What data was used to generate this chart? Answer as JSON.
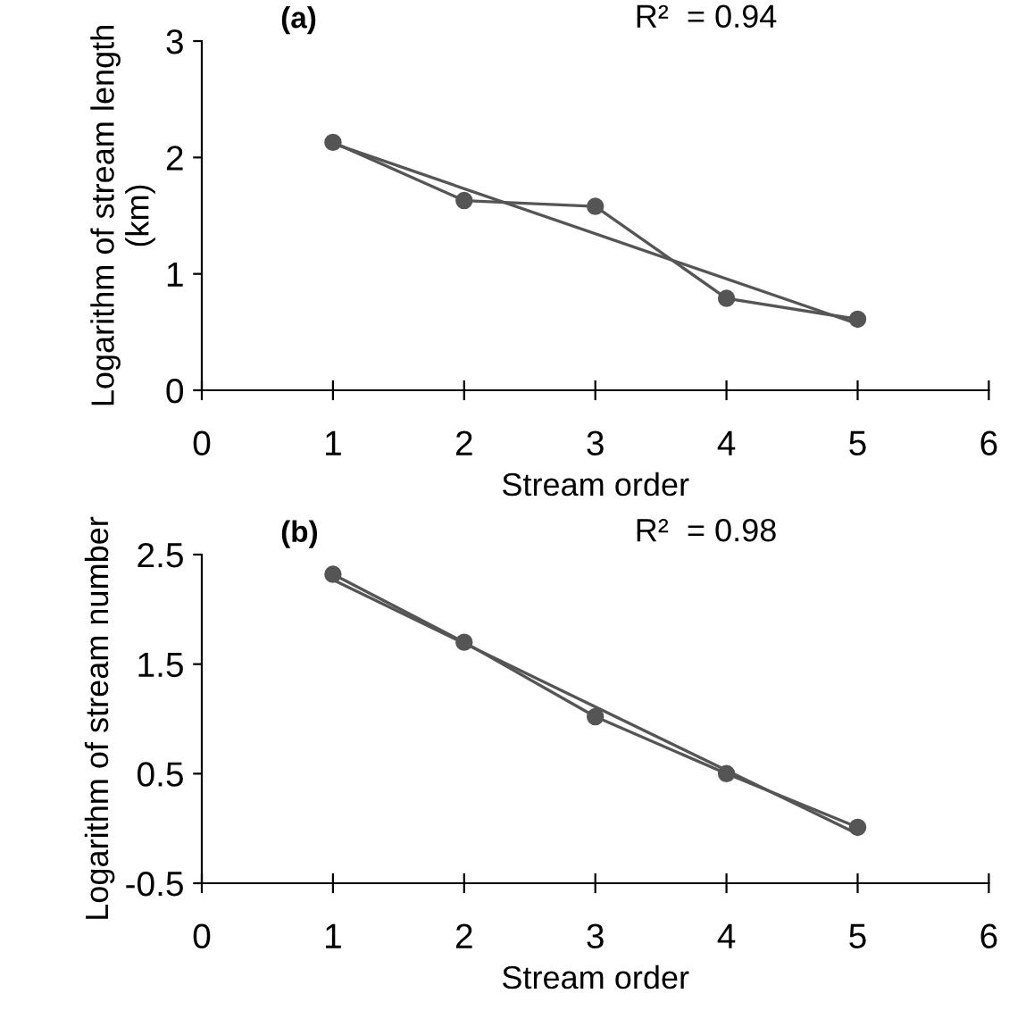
{
  "chart_data": [
    {
      "type": "line",
      "title": "(a)",
      "annotations": [
        "R²  = 0.94"
      ],
      "xlabel": "Stream order",
      "ylabel": "Logarithm of stream length (km)",
      "xlim": [
        0,
        6
      ],
      "xticks": [
        0,
        1,
        2,
        3,
        4,
        5,
        6
      ],
      "ylim": [
        0,
        3
      ],
      "yticks": [
        0,
        1,
        2,
        3
      ],
      "grid": false,
      "legend": false,
      "series": [
        {
          "color": "#555555",
          "x": [
            1,
            2,
            3,
            4,
            5
          ],
          "values": [
            2.13,
            1.63,
            1.58,
            0.79,
            0.61
          ],
          "marker": "circle"
        },
        {
          "color": "#555555",
          "x": [
            1,
            5
          ],
          "values": [
            2.12,
            0.57
          ],
          "marker": "none"
        }
      ]
    },
    {
      "type": "line",
      "title": "(b)",
      "annotations": [
        "R²  = 0.98"
      ],
      "xlabel": "Stream order",
      "ylabel": "Logarithm of stream number",
      "xlim": [
        0,
        6
      ],
      "xticks": [
        0,
        1,
        2,
        3,
        4,
        5,
        6
      ],
      "ylim": [
        -0.5,
        2.5
      ],
      "yticks": [
        -0.5,
        0.5,
        1.5,
        2.5
      ],
      "grid": false,
      "legend": false,
      "series": [
        {
          "color": "#555555",
          "x": [
            1,
            2,
            3,
            4,
            5
          ],
          "values": [
            2.32,
            1.7,
            1.02,
            0.5,
            0.01
          ],
          "marker": "circle"
        },
        {
          "color": "#555555",
          "x": [
            1,
            5
          ],
          "values": [
            2.27,
            -0.05
          ],
          "marker": "none"
        }
      ]
    }
  ]
}
